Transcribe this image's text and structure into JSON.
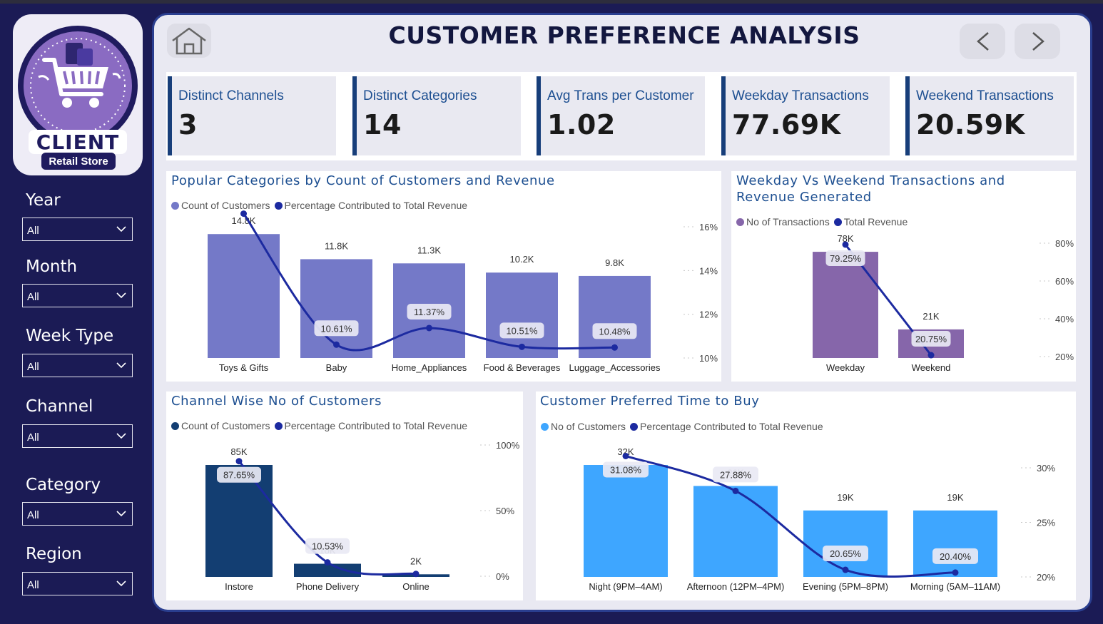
{
  "header": {
    "title": "CUSTOMER PREFERENCE ANALYSIS"
  },
  "logo": {
    "brand": "CLIENT",
    "tagline": "Retail Store"
  },
  "filters": [
    {
      "label": "Year",
      "value": "All"
    },
    {
      "label": "Month",
      "value": "All"
    },
    {
      "label": "Week Type",
      "value": "All"
    },
    {
      "label": "Channel",
      "value": "All"
    },
    {
      "label": "Category",
      "value": "All"
    },
    {
      "label": "Region",
      "value": "All"
    }
  ],
  "kpis": [
    {
      "label": "Distinct Channels",
      "value": "3"
    },
    {
      "label": "Distinct Categories",
      "value": "14"
    },
    {
      "label": "Avg Trans per Customer",
      "value": "1.02"
    },
    {
      "label": "Weekday Transactions",
      "value": "77.69K"
    },
    {
      "label": "Weekend Transactions",
      "value": "20.59K"
    }
  ],
  "colors": {
    "sidebar_bg": "#1b1b55",
    "panel_bg": "#e9e9f2",
    "title": "#13173f",
    "card_title": "#1d4f91",
    "line": "#1c2aa0",
    "bar_category": "#7479c8",
    "bar_week": "#8666aa",
    "bar_channel": "#133e72",
    "bar_time": "#3ea6ff"
  },
  "icons": [
    "home-icon",
    "chevron-left-icon",
    "chevron-right-icon",
    "chevron-down-icon",
    "shopping-cart-icon"
  ],
  "chart_data": [
    {
      "id": "categories",
      "type": "bar",
      "title": "Popular Categories by Count of Customers and Revenue",
      "legend": [
        "Count of Customers",
        "Percentage Contributed to Total Revenue"
      ],
      "categories": [
        "Toys & Gifts",
        "Baby",
        "Home_Appliances",
        "Food & Beverages",
        "Luggage_Accessories"
      ],
      "series": [
        {
          "name": "Count of Customers",
          "type": "bar",
          "values": [
            14800,
            11800,
            11300,
            10200,
            9800
          ],
          "labels": [
            "14.8K",
            "11.8K",
            "11.3K",
            "10.2K",
            "9.8K"
          ]
        },
        {
          "name": "Percentage Contributed to Total Revenue",
          "type": "line",
          "values": [
            16.6,
            10.61,
            11.37,
            10.51,
            10.48
          ],
          "labels": [
            "",
            "10.61%",
            "11.37%",
            "10.51%",
            "10.48%"
          ]
        }
      ],
      "bar_ylim": [
        0,
        15500
      ],
      "line_ylim": [
        10,
        16
      ],
      "right_ticks": [
        "16%",
        "14%",
        "12%",
        "10%"
      ],
      "right_tick_values": [
        16,
        14,
        12,
        10
      ]
    },
    {
      "id": "weekpart",
      "type": "bar",
      "title": "Weekday Vs Weekend Transactions and Revenue Generated",
      "legend": [
        "No of Transactions",
        "Total Revenue"
      ],
      "categories": [
        "Weekday",
        "Weekend"
      ],
      "series": [
        {
          "name": "No of Transactions",
          "type": "bar",
          "values": [
            78000,
            21000
          ],
          "labels": [
            "78K",
            "21K"
          ]
        },
        {
          "name": "Total Revenue",
          "type": "line",
          "values": [
            79.25,
            20.75
          ],
          "labels": [
            "79.25%",
            "20.75%"
          ]
        }
      ],
      "bar_ylim": [
        0,
        88000
      ],
      "line_ylim": [
        20,
        80
      ],
      "right_ticks": [
        "80%",
        "60%",
        "40%",
        "20%"
      ],
      "right_tick_values": [
        80,
        60,
        40,
        20
      ]
    },
    {
      "id": "channel",
      "type": "bar",
      "title": "Channel Wise No of Customers",
      "legend": [
        "Count of Customers",
        "Percentage Contributed to Total Revenue"
      ],
      "categories": [
        "Instore",
        "Phone Delivery",
        "Online"
      ],
      "series": [
        {
          "name": "Count of Customers",
          "type": "bar",
          "values": [
            85000,
            10000,
            2000
          ],
          "labels": [
            "85K",
            "10K",
            "2K"
          ]
        },
        {
          "name": "Percentage Contributed to Total Revenue",
          "type": "line",
          "values": [
            87.65,
            10.53,
            1.8
          ],
          "labels": [
            "87.65%",
            "10.53%",
            ""
          ]
        }
      ],
      "bar_ylim": [
        0,
        85000
      ],
      "line_ylim": [
        0,
        100
      ],
      "right_ticks": [
        "100%",
        "50%",
        "0%"
      ],
      "right_tick_values": [
        100,
        50,
        0
      ]
    },
    {
      "id": "time",
      "type": "bar",
      "title": "Customer Preferred Time to Buy",
      "legend": [
        "No of Customers",
        "Percentage Contributed to Total Revenue"
      ],
      "categories": [
        "Night (9PM–4AM)",
        "Afternoon (12PM–4PM)",
        "Evening (5PM–8PM)",
        "Morning (5AM–11AM)"
      ],
      "series": [
        {
          "name": "No of Customers",
          "type": "bar",
          "values": [
            32000,
            26000,
            19000,
            19000
          ],
          "labels": [
            "32K",
            "26K",
            "19K",
            "19K"
          ]
        },
        {
          "name": "Percentage Contributed to Total Revenue",
          "type": "line",
          "values": [
            31.08,
            27.88,
            20.65,
            20.4
          ],
          "labels": [
            "31.08%",
            "27.88%",
            "20.65%",
            "20.40%"
          ]
        }
      ],
      "bar_ylim": [
        0,
        32000
      ],
      "line_ylim": [
        20,
        30
      ],
      "right_ticks": [
        "30%",
        "25%",
        "20%"
      ],
      "right_tick_values": [
        30,
        25,
        20
      ]
    }
  ]
}
